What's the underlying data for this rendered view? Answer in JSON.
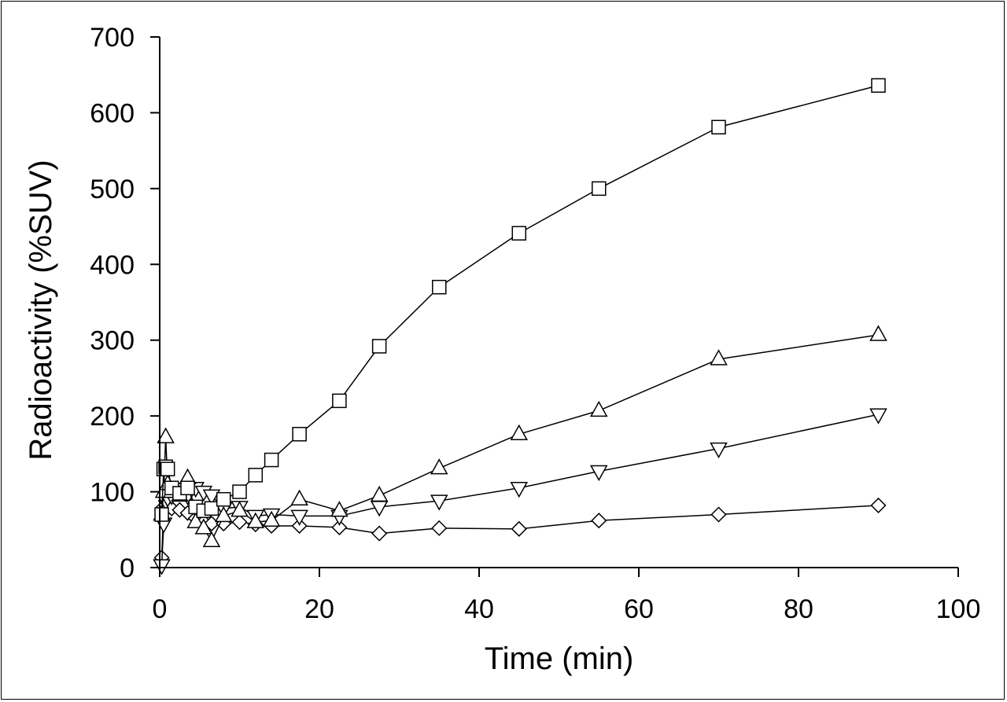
{
  "chart_data": {
    "type": "line",
    "title": "",
    "xlabel": "Time (min)",
    "ylabel": "Radioactivity (%SUV)",
    "xlim": [
      0,
      100
    ],
    "ylim": [
      0,
      700
    ],
    "x_ticks": [
      0,
      20,
      40,
      60,
      80,
      100
    ],
    "y_ticks": [
      0,
      100,
      200,
      300,
      400,
      500,
      600,
      700
    ],
    "grid": false,
    "legend": "none",
    "line_color": "#000000",
    "series": [
      {
        "marker": "square",
        "points": [
          [
            0.25,
            70
          ],
          [
            0.5,
            130
          ],
          [
            0.75,
            133
          ],
          [
            1.0,
            130
          ],
          [
            1.5,
            105
          ],
          [
            2.5,
            98
          ],
          [
            3.5,
            105
          ],
          [
            4.5,
            80
          ],
          [
            5.5,
            75
          ],
          [
            6.5,
            78
          ],
          [
            8,
            90
          ],
          [
            10,
            100
          ],
          [
            12,
            122
          ],
          [
            14,
            142
          ],
          [
            17.5,
            176
          ],
          [
            22.5,
            220
          ],
          [
            27.5,
            292
          ],
          [
            35,
            370
          ],
          [
            45,
            441
          ],
          [
            55,
            500
          ],
          [
            70,
            581
          ],
          [
            90,
            636
          ]
        ]
      },
      {
        "marker": "triangle-up",
        "points": [
          [
            0.25,
            70
          ],
          [
            0.5,
            100
          ],
          [
            0.75,
            172
          ],
          [
            1.0,
            110
          ],
          [
            1.5,
            100
          ],
          [
            2.5,
            95
          ],
          [
            3.5,
            118
          ],
          [
            4.5,
            60
          ],
          [
            5.5,
            52
          ],
          [
            6.5,
            35
          ],
          [
            8,
            68
          ],
          [
            10,
            75
          ],
          [
            12,
            60
          ],
          [
            14,
            62
          ],
          [
            17.5,
            90
          ],
          [
            22.5,
            75
          ],
          [
            27.5,
            95
          ],
          [
            35,
            131
          ],
          [
            45,
            176
          ],
          [
            55,
            207
          ],
          [
            70,
            275
          ],
          [
            90,
            307
          ]
        ]
      },
      {
        "marker": "triangle-down",
        "points": [
          [
            0.25,
            3
          ],
          [
            0.5,
            58
          ],
          [
            0.75,
            88
          ],
          [
            1.0,
            92
          ],
          [
            1.5,
            95
          ],
          [
            2.5,
            100
          ],
          [
            3.5,
            95
          ],
          [
            4.5,
            105
          ],
          [
            5.5,
            100
          ],
          [
            6.5,
            95
          ],
          [
            8,
            78
          ],
          [
            10,
            80
          ],
          [
            12,
            68
          ],
          [
            14,
            70
          ],
          [
            17.5,
            68
          ],
          [
            22.5,
            68
          ],
          [
            27.5,
            80
          ],
          [
            35,
            88
          ],
          [
            45,
            105
          ],
          [
            55,
            127
          ],
          [
            70,
            157
          ],
          [
            90,
            202
          ]
        ]
      },
      {
        "marker": "diamond",
        "points": [
          [
            0.25,
            13
          ],
          [
            0.5,
            80
          ],
          [
            0.75,
            88
          ],
          [
            1.0,
            80
          ],
          [
            1.5,
            78
          ],
          [
            2.5,
            76
          ],
          [
            3.5,
            72
          ],
          [
            4.5,
            65
          ],
          [
            5.5,
            60
          ],
          [
            6.5,
            58
          ],
          [
            8,
            58
          ],
          [
            10,
            60
          ],
          [
            12,
            57
          ],
          [
            14,
            55
          ],
          [
            17.5,
            55
          ],
          [
            22.5,
            53
          ],
          [
            27.5,
            45
          ],
          [
            35,
            52
          ],
          [
            45,
            51
          ],
          [
            55,
            62
          ],
          [
            70,
            70
          ],
          [
            90,
            82
          ]
        ]
      }
    ]
  }
}
